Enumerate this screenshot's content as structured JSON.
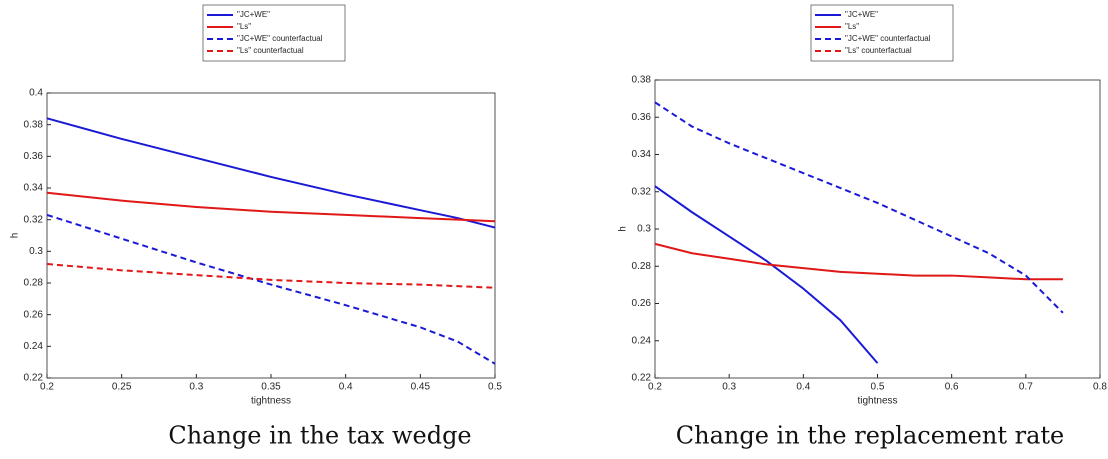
{
  "chart_data": [
    {
      "type": "line",
      "title": "Change in the tax wedge",
      "x_label": "tightness",
      "y_label": "h",
      "x": [
        0.2,
        0.25,
        0.3,
        0.35,
        0.4,
        0.45,
        0.475,
        0.5
      ],
      "series": [
        {
          "name": "\"JC+WE\"",
          "color": "#1a1ad6",
          "style": "solid",
          "values": [
            0.384,
            0.371,
            0.359,
            0.347,
            0.336,
            0.326,
            0.321,
            0.315
          ]
        },
        {
          "name": "\"Ls\"",
          "color": "#e01818",
          "style": "solid",
          "values": [
            0.337,
            0.332,
            0.328,
            0.325,
            0.323,
            0.321,
            0.32,
            0.319
          ]
        },
        {
          "name": "\"JC+WE\" counterfactual",
          "color": "#1a1ad6",
          "style": "dashed",
          "values": [
            0.323,
            0.308,
            0.293,
            0.279,
            0.266,
            0.252,
            0.243,
            0.229
          ]
        },
        {
          "name": "\"Ls\" counterfactual",
          "color": "#e01818",
          "style": "dashed",
          "values": [
            0.292,
            0.288,
            0.285,
            0.282,
            0.28,
            0.279,
            0.278,
            0.277
          ]
        }
      ],
      "xlim": [
        0.2,
        0.5
      ],
      "xticks": [
        0.2,
        0.25,
        0.3,
        0.35,
        0.4,
        0.45,
        0.5
      ],
      "ylim": [
        0.22,
        0.4
      ],
      "yticks": [
        0.22,
        0.24,
        0.26,
        0.28,
        0.3,
        0.32,
        0.34,
        0.36,
        0.38,
        0.4
      ],
      "legend": "top"
    },
    {
      "type": "line",
      "title": "Change in the replacement rate",
      "x_label": "tightness",
      "y_label": "h",
      "x": [
        0.2,
        0.25,
        0.3,
        0.35,
        0.4,
        0.45,
        0.5,
        0.55,
        0.6,
        0.65,
        0.7,
        0.75
      ],
      "series": [
        {
          "name": "\"JC+WE\"",
          "color": "#1a1ad6",
          "style": "solid",
          "values": [
            0.323,
            0.309,
            0.296,
            0.283,
            0.268,
            0.251,
            0.228,
            null,
            null,
            null,
            null,
            null
          ]
        },
        {
          "name": "\"Ls\"",
          "color": "#e01818",
          "style": "solid",
          "values": [
            0.292,
            0.287,
            0.284,
            0.281,
            0.279,
            0.277,
            0.276,
            0.275,
            0.275,
            0.274,
            0.273,
            0.273
          ]
        },
        {
          "name": "\"JC+WE\" counterfactual",
          "color": "#1a1ad6",
          "style": "dashed",
          "values": [
            0.368,
            0.355,
            0.346,
            0.338,
            0.33,
            0.322,
            0.314,
            0.305,
            0.296,
            0.287,
            0.275,
            0.255
          ]
        },
        {
          "name": "\"Ls\" counterfactual",
          "color": "#e01818",
          "style": "dashed",
          "values": [
            null,
            null,
            null,
            null,
            null,
            null,
            null,
            null,
            null,
            null,
            null,
            null
          ]
        }
      ],
      "xlim": [
        0.2,
        0.8
      ],
      "xticks": [
        0.2,
        0.3,
        0.4,
        0.5,
        0.6,
        0.7,
        0.8
      ],
      "ylim": [
        0.22,
        0.38
      ],
      "yticks": [
        0.22,
        0.24,
        0.26,
        0.28,
        0.3,
        0.32,
        0.34,
        0.36,
        0.38
      ],
      "legend": "top"
    }
  ]
}
